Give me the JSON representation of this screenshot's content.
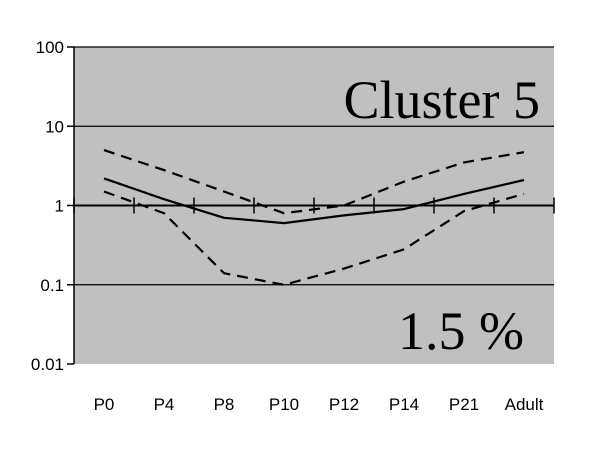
{
  "chart_data": {
    "type": "line",
    "title": "",
    "xlabel": "",
    "ylabel": "",
    "annotations": {
      "cluster_label": "Cluster 5",
      "percent_label": "1.5 %"
    },
    "categories": [
      "P0",
      "P4",
      "P8",
      "P10",
      "P12",
      "P14",
      "P21",
      "Adult"
    ],
    "y_scale": "log",
    "ylim": [
      0.01,
      100
    ],
    "y_ticks": [
      {
        "value": 100,
        "label": "100"
      },
      {
        "value": 10,
        "label": "10"
      },
      {
        "value": 1,
        "label": "1"
      },
      {
        "value": 0.1,
        "label": "0.1"
      },
      {
        "value": 0.01,
        "label": "0.01"
      }
    ],
    "grid": true,
    "plot_background": "#c0c0c0",
    "series": [
      {
        "style": "solid",
        "values": [
          2.2,
          1.2,
          0.7,
          0.6,
          0.75,
          0.9,
          1.4,
          2.1
        ]
      },
      {
        "style": "dashed",
        "values": [
          5.0,
          2.8,
          1.5,
          0.8,
          1.0,
          2.0,
          3.5,
          4.7
        ]
      },
      {
        "style": "dashed",
        "values": [
          1.5,
          0.8,
          0.14,
          0.1,
          0.16,
          0.28,
          0.85,
          1.4
        ]
      }
    ]
  }
}
